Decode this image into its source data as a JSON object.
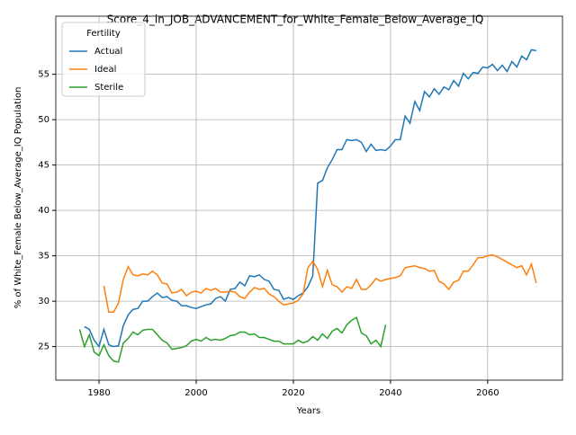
{
  "chart_data": {
    "type": "line",
    "title": "Score_4_in_JOB_ADVANCEMENT_for_White_Female_Below_Average_IQ",
    "xlabel": "Years",
    "ylabel": "% of White_Female Below_Average_IQ Population",
    "legend_title": "Fertility",
    "legend": "upper left",
    "grid": true,
    "xlim": [
      1971.1,
      2075.4
    ],
    "ylim": [
      21.3,
      61.4
    ],
    "xticks": [
      1980,
      2000,
      2020,
      2040,
      2060
    ],
    "yticks": [
      25,
      30,
      35,
      40,
      45,
      50,
      55
    ],
    "x": [
      1976,
      1977,
      1978,
      1979,
      1980,
      1981,
      1982,
      1983,
      1984,
      1985,
      1986,
      1987,
      1988,
      1989,
      1990,
      1991,
      1992,
      1993,
      1994,
      1995,
      1996,
      1997,
      1998,
      1999,
      2000,
      2001,
      2002,
      2003,
      2004,
      2005,
      2006,
      2007,
      2008,
      2009,
      2010,
      2011,
      2012,
      2013,
      2014,
      2015,
      2016,
      2017,
      2018,
      2019,
      2020,
      2021,
      2022,
      2023,
      2024,
      2025,
      2026,
      2027,
      2028,
      2029,
      2030,
      2031,
      2032,
      2033,
      2034,
      2035,
      2036,
      2037,
      2038,
      2039,
      2040,
      2041,
      2042,
      2043,
      2044,
      2045,
      2046,
      2047,
      2048,
      2049,
      2050,
      2051,
      2052,
      2053,
      2054,
      2055,
      2056,
      2057,
      2058,
      2059,
      2060,
      2061,
      2062,
      2063,
      2064,
      2065,
      2066,
      2067,
      2068,
      2069,
      2070
    ],
    "series": [
      {
        "name": "Actual",
        "color": "#1f77b4",
        "values": [
          null,
          27.2,
          26.9,
          25.7,
          25.0,
          26.9,
          25.2,
          25.0,
          25.1,
          27.3,
          28.5,
          29.1,
          29.2,
          30.0,
          30.0,
          30.5,
          30.9,
          30.4,
          30.5,
          30.1,
          30.0,
          29.5,
          29.5,
          29.3,
          29.2,
          29.4,
          29.6,
          29.7,
          30.3,
          30.5,
          30.0,
          31.3,
          31.4,
          32.1,
          31.7,
          32.8,
          32.7,
          32.9,
          32.4,
          32.2,
          31.3,
          31.2,
          30.2,
          30.4,
          30.2,
          30.6,
          30.9,
          31.6,
          32.8,
          43.0,
          43.3,
          44.7,
          45.6,
          46.7,
          46.7,
          47.8,
          47.7,
          47.8,
          47.5,
          46.5,
          47.3,
          46.6,
          46.7,
          46.6,
          47.1,
          47.8,
          47.8,
          50.4,
          49.6,
          52.0,
          51.0,
          53.1,
          52.5,
          53.4,
          52.8,
          53.6,
          53.3,
          54.3,
          53.7,
          55.1,
          54.5,
          55.2,
          55.1,
          55.8,
          55.7,
          56.1,
          55.4,
          56.0,
          55.3,
          56.4,
          55.8,
          57.0,
          56.6,
          57.7,
          57.6
        ]
      },
      {
        "name": "Ideal",
        "color": "#ff7f0e",
        "values": [
          null,
          null,
          null,
          null,
          null,
          31.7,
          28.8,
          28.8,
          29.8,
          32.4,
          33.8,
          32.9,
          32.8,
          33.0,
          32.9,
          33.3,
          32.9,
          32.0,
          31.9,
          30.9,
          31.0,
          31.3,
          30.6,
          31.0,
          31.1,
          30.9,
          31.4,
          31.2,
          31.4,
          31.0,
          31.0,
          31.1,
          31.0,
          30.5,
          30.3,
          31.0,
          31.5,
          31.3,
          31.4,
          30.8,
          30.5,
          30.0,
          29.6,
          29.7,
          29.8,
          30.1,
          30.8,
          33.7,
          34.4,
          33.5,
          31.6,
          33.4,
          31.8,
          31.6,
          31.0,
          31.6,
          31.4,
          32.4,
          31.3,
          31.3,
          31.8,
          32.5,
          32.2,
          32.4,
          32.5,
          32.6,
          32.8,
          33.7,
          33.8,
          33.9,
          33.7,
          33.6,
          33.3,
          33.4,
          32.2,
          31.9,
          31.3,
          32.1,
          32.3,
          33.3,
          33.3,
          34.0,
          34.8,
          34.8,
          35.0,
          35.1,
          34.9,
          34.6,
          34.3,
          34.0,
          33.7,
          33.9,
          32.9,
          34.1,
          32.0
        ]
      },
      {
        "name": "Sterile",
        "color": "#2ca02c",
        "values": [
          26.9,
          25.0,
          26.3,
          24.4,
          24.0,
          25.2,
          24.0,
          23.4,
          23.3,
          25.4,
          25.9,
          26.6,
          26.3,
          26.8,
          26.9,
          26.9,
          26.3,
          25.7,
          25.4,
          24.7,
          24.8,
          24.9,
          25.1,
          25.6,
          25.8,
          25.6,
          26.0,
          25.7,
          25.8,
          25.7,
          25.9,
          26.2,
          26.3,
          26.6,
          26.6,
          26.3,
          26.4,
          26.0,
          26.0,
          25.8,
          25.6,
          25.6,
          25.3,
          25.3,
          25.3,
          25.7,
          25.4,
          25.6,
          26.1,
          25.7,
          26.4,
          25.9,
          26.7,
          27.0,
          26.5,
          27.4,
          27.9,
          28.2,
          26.5,
          26.2,
          25.3,
          25.7,
          25.0,
          27.4,
          null,
          null,
          null,
          null,
          null,
          null,
          null,
          null,
          null,
          null,
          null,
          null,
          null,
          null,
          null,
          null,
          null,
          null,
          null,
          null,
          null,
          null,
          null,
          null,
          null,
          null,
          null,
          null,
          null,
          null,
          null
        ]
      }
    ]
  }
}
